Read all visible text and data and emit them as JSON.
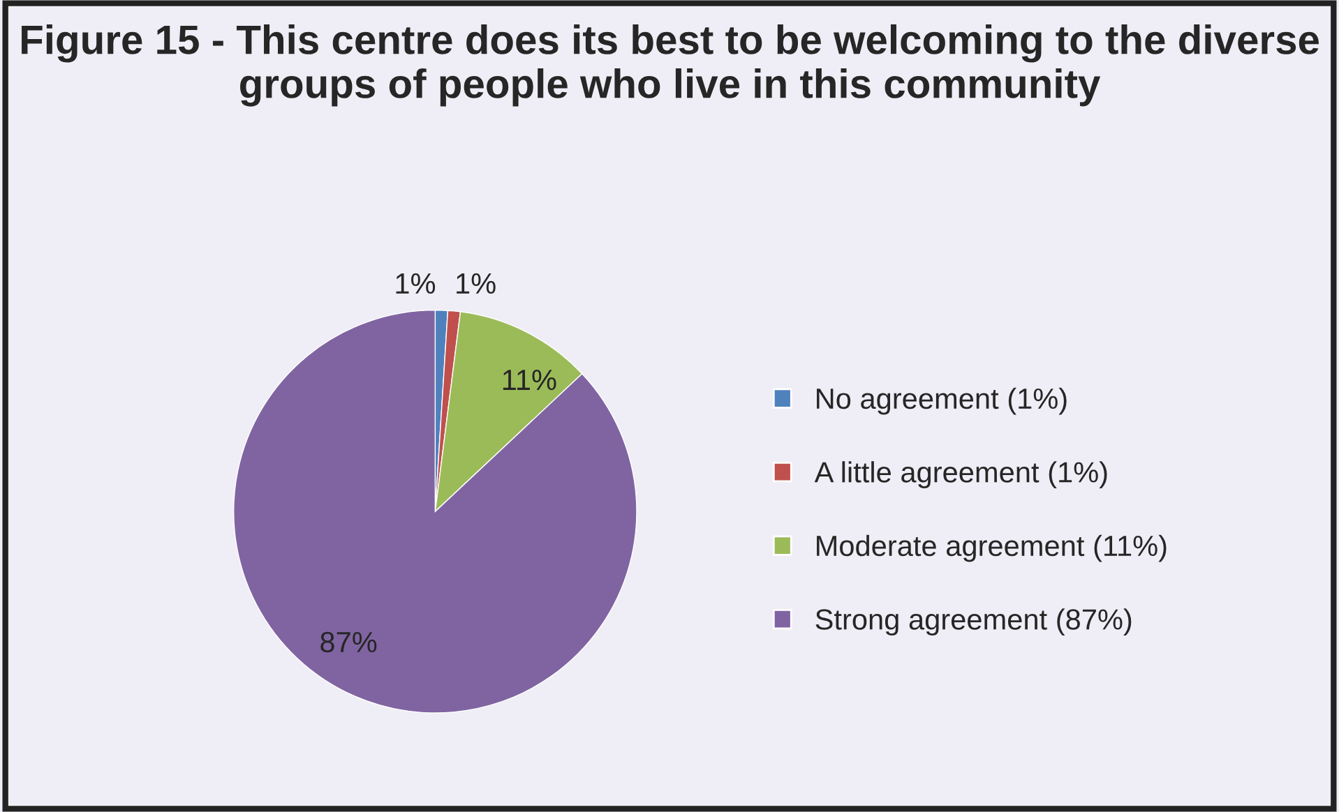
{
  "chart_data": {
    "type": "pie",
    "title": "Figure 15 - This centre does its best to be welcoming to the diverse groups of people who live in this community",
    "categories": [
      "No agreement (1%)",
      "A little agreement (1%)",
      "Moderate agreement (11%)",
      "Strong agreement (87%)"
    ],
    "values": [
      1,
      1,
      11,
      87
    ],
    "value_labels": [
      "1%",
      "1%",
      "11%",
      "87%"
    ],
    "colors": [
      "#4f81bd",
      "#c0504d",
      "#9bbb59",
      "#8064a2"
    ],
    "legend": "right"
  }
}
